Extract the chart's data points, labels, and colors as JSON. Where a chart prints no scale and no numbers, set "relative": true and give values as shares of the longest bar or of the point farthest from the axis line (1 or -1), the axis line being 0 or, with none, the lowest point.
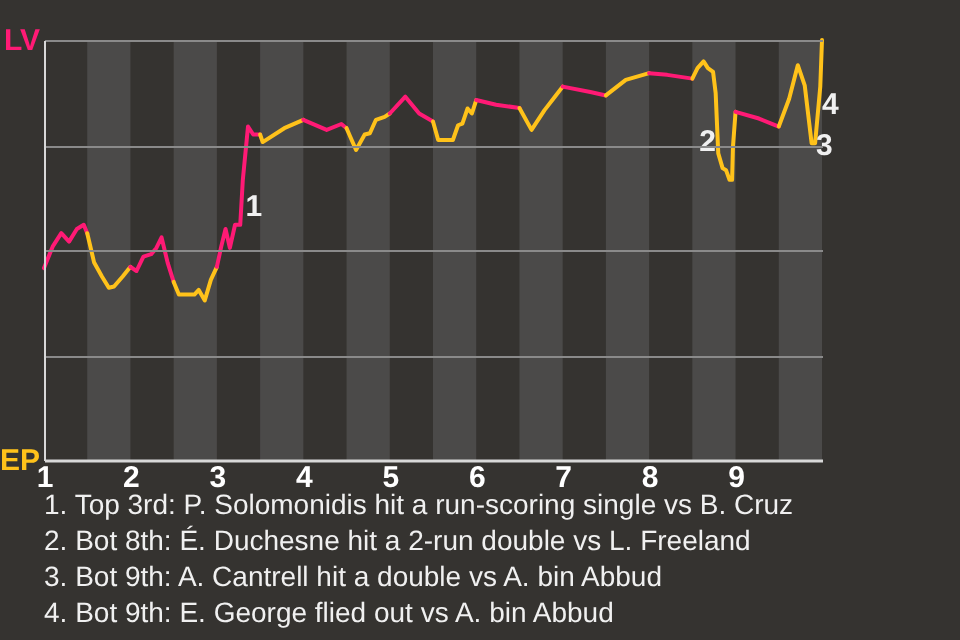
{
  "chart_data": {
    "type": "line",
    "relative": true,
    "xlim": [
      1,
      10
    ],
    "xticks": [
      1,
      2,
      3,
      4,
      5,
      6,
      7,
      8,
      9
    ],
    "grid": "y",
    "line_style": "solid",
    "bands": [
      {
        "axis": "x",
        "from": 1.5,
        "to": 2,
        "color": "#4b4a49"
      },
      {
        "axis": "x",
        "from": 2.5,
        "to": 3,
        "color": "#4b4a49"
      },
      {
        "axis": "x",
        "from": 3.5,
        "to": 4,
        "color": "#4b4a49"
      },
      {
        "axis": "x",
        "from": 4.5,
        "to": 5,
        "color": "#4b4a49"
      },
      {
        "axis": "x",
        "from": 5.5,
        "to": 6,
        "color": "#4b4a49"
      },
      {
        "axis": "x",
        "from": 6.5,
        "to": 7,
        "color": "#4b4a49"
      },
      {
        "axis": "x",
        "from": 7.5,
        "to": 8,
        "color": "#4b4a49"
      },
      {
        "axis": "x",
        "from": 8.5,
        "to": 9,
        "color": "#4b4a49"
      },
      {
        "axis": "x",
        "from": 9.5,
        "to": 10,
        "color": "#4b4a49"
      }
    ],
    "series": [
      {
        "color": "#ff1a75",
        "x": [
          1,
          1.1,
          1.2,
          1.29,
          1.38,
          1.46,
          1.5
        ],
        "values": [
          0.457,
          0.508,
          0.54,
          0.52,
          0.55,
          0.56,
          0.54
        ]
      },
      {
        "color": "#ffc21a",
        "x": [
          1.5,
          1.58,
          1.67,
          1.75,
          1.81,
          1.91,
          2
        ],
        "values": [
          0.54,
          0.47,
          0.437,
          0.41,
          0.413,
          0.437,
          0.46
        ]
      },
      {
        "color": "#ff1a75",
        "x": [
          2,
          2.07,
          2.15,
          2.24,
          2.3,
          2.36,
          2.43,
          2.5
        ],
        "values": [
          0.46,
          0.45,
          0.484,
          0.49,
          0.505,
          0.53,
          0.47,
          0.424
        ]
      },
      {
        "color": "#ffc21a",
        "x": [
          2.5,
          2.56,
          2.74,
          2.79,
          2.86,
          2.93,
          3
        ],
        "values": [
          0.424,
          0.394,
          0.394,
          0.405,
          0.38,
          0.429,
          0.46
        ]
      },
      {
        "color": "#ff1a75",
        "x": [
          3,
          3.05,
          3.1,
          3.15,
          3.21,
          3.27,
          3.3,
          3.36,
          3.42,
          3.5
        ],
        "values": [
          0.46,
          0.508,
          0.55,
          0.505,
          0.56,
          0.56,
          0.667,
          0.794,
          0.775,
          0.775
        ]
      },
      {
        "color": "#ffc21a",
        "x": [
          3.5,
          3.53,
          3.78,
          4
        ],
        "values": [
          0.775,
          0.757,
          0.79,
          0.81
        ]
      },
      {
        "color": "#ff1a75",
        "x": [
          4,
          4.27,
          4.44,
          4.5
        ],
        "values": [
          0.81,
          0.786,
          0.8,
          0.79
        ]
      },
      {
        "color": "#ffc21a",
        "x": [
          4.5,
          4.61,
          4.71,
          4.77,
          4.84,
          4.94,
          5
        ],
        "values": [
          0.79,
          0.738,
          0.775,
          0.778,
          0.81,
          0.817,
          0.825
        ]
      },
      {
        "color": "#ff1a75",
        "x": [
          5,
          5.18,
          5.34,
          5.5
        ],
        "values": [
          0.825,
          0.865,
          0.825,
          0.806
        ]
      },
      {
        "color": "#ffc21a",
        "x": [
          5.5,
          5.56,
          5.73,
          5.79,
          5.84,
          5.9,
          5.95,
          6
        ],
        "values": [
          0.806,
          0.762,
          0.762,
          0.797,
          0.801,
          0.837,
          0.825,
          0.857
        ]
      },
      {
        "color": "#ff1a75",
        "x": [
          6,
          6.23,
          6.5
        ],
        "values": [
          0.857,
          0.846,
          0.838
        ]
      },
      {
        "color": "#ffc21a",
        "x": [
          6.5,
          6.64,
          6.79,
          6.91,
          7
        ],
        "values": [
          0.838,
          0.786,
          0.833,
          0.865,
          0.889
        ]
      },
      {
        "color": "#ff1a75",
        "x": [
          7,
          7.32,
          7.5
        ],
        "values": [
          0.889,
          0.876,
          0.868
        ]
      },
      {
        "color": "#ffc21a",
        "x": [
          7.5,
          7.73,
          8
        ],
        "values": [
          0.868,
          0.905,
          0.921
        ]
      },
      {
        "color": "#ff1a75",
        "x": [
          8,
          8.21,
          8.5
        ],
        "values": [
          0.921,
          0.917,
          0.908
        ]
      },
      {
        "color": "#ffc21a",
        "x": [
          8.5,
          8.56,
          8.63,
          8.68,
          8.74,
          8.77,
          8.8,
          8.85,
          8.89,
          8.93,
          8.96,
          8.97,
          9
        ],
        "values": [
          0.908,
          0.933,
          0.949,
          0.933,
          0.924,
          0.873,
          0.73,
          0.695,
          0.69,
          0.667,
          0.667,
          0.746,
          0.829
        ]
      },
      {
        "color": "#ff1a75",
        "x": [
          9,
          9.27,
          9.5
        ],
        "values": [
          0.829,
          0.813,
          0.794
        ]
      },
      {
        "color": "#ffc21a",
        "x": [
          9.5,
          9.62,
          9.72,
          9.8,
          9.88,
          9.92,
          9.98,
          10
        ],
        "values": [
          0.794,
          0.86,
          0.94,
          0.892,
          0.754,
          0.754,
          0.889,
          1
        ]
      }
    ],
    "annotations": [
      "LV",
      "EP",
      {
        "text": "1",
        "x": 3.33,
        "y": 0.605
      },
      {
        "text": "2",
        "x": 8.58,
        "y": 0.76
      },
      {
        "text": "3",
        "x": 9.93,
        "y": 0.75
      },
      {
        "text": "4",
        "x": 10,
        "y": 0.848
      },
      "1. Top 3rd: P. Solomonidis hit a run-scoring single vs B. Cruz",
      "2. Bot 8th: É. Duchesne hit a 2-run double vs L. Freeland",
      "3. Bot 9th: A. Cantrell hit a double vs A. bin Abbud",
      "4. Bot 9th: E. George flied out vs A. bin Abbud"
    ]
  }
}
